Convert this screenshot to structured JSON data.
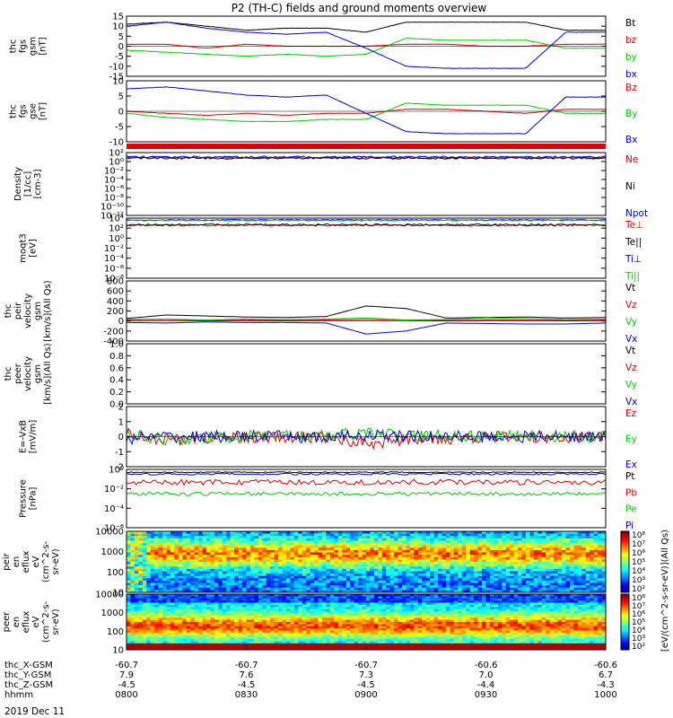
{
  "title": "P2 (TH-C) fields and ground moments overview",
  "date_label": "2019 Dec 11",
  "colors": {
    "black": "#000000",
    "red": "#dd0000",
    "green": "#00cc00",
    "blue": "#0000cc"
  },
  "panels": [
    {
      "id": "fgs-gsm",
      "ylabel": [
        "thc",
        "fgs",
        "gsm",
        "[nT]"
      ],
      "scale": "linear",
      "ylim": [
        -15,
        15
      ],
      "ticks": [
        "15",
        "10",
        "5",
        "0",
        "-5",
        "-10",
        "-15"
      ],
      "legend": [
        {
          "label": "Bt",
          "color": "black"
        },
        {
          "label": "bz",
          "color": "red"
        },
        {
          "label": "by",
          "color": "green"
        },
        {
          "label": "bx",
          "color": "blue"
        }
      ]
    },
    {
      "id": "fgs-gse",
      "ylabel": [
        "thc",
        "fgs",
        "gse",
        "[nT]"
      ],
      "scale": "linear",
      "ylim": [
        -15,
        15
      ],
      "ticks": [
        "10",
        "5",
        "0",
        "-5",
        "-10"
      ],
      "legend": [
        {
          "label": "Bz",
          "color": "red"
        },
        {
          "label": "By",
          "color": "green"
        },
        {
          "label": "Bx",
          "color": "blue"
        }
      ]
    },
    {
      "id": "density",
      "ylabel": [
        "Density",
        "[1/cc]",
        "[cm-3]"
      ],
      "scale": "log",
      "ticks": [
        "10²",
        "10⁰",
        "10⁻²",
        "10⁻⁴",
        "10⁻⁶",
        "10⁻⁸",
        "10⁻¹⁰",
        "10⁻¹²"
      ],
      "legend": [
        {
          "label": "Ne",
          "color": "red"
        },
        {
          "label": "Ni",
          "color": "black"
        },
        {
          "label": "Npot",
          "color": "blue"
        }
      ]
    },
    {
      "id": "temperature",
      "ylabel": [
        "moqt3",
        "[eV]"
      ],
      "scale": "log",
      "ticks": [
        "10⁴",
        "10²",
        "10⁰",
        "10⁻²",
        "10⁻⁴",
        "10⁻⁶",
        "10⁻⁸"
      ],
      "legend": [
        {
          "label": "Te⊥",
          "color": "red"
        },
        {
          "label": "Te||",
          "color": "black"
        },
        {
          "label": "Ti⊥",
          "color": "blue"
        },
        {
          "label": "Ti||",
          "color": "green"
        }
      ]
    },
    {
      "id": "peir-velocity",
      "ylabel": [
        "thc",
        "peir",
        "velocity",
        "gsm",
        "[km/s](All Qs)"
      ],
      "scale": "linear",
      "ylim": [
        -400,
        800
      ],
      "ticks": [
        "800",
        "600",
        "400",
        "200",
        "0",
        "-200",
        "-400"
      ],
      "legend": [
        {
          "label": "Vt",
          "color": "black"
        },
        {
          "label": "Vz",
          "color": "red"
        },
        {
          "label": "Vy",
          "color": "green"
        },
        {
          "label": "Vx",
          "color": "blue"
        }
      ]
    },
    {
      "id": "peer-velocity",
      "ylabel": [
        "thc",
        "peer",
        "velocity",
        "gsm",
        "[km/s](All Qs)"
      ],
      "scale": "linear",
      "ylim": [
        0,
        1
      ],
      "ticks": [
        "1.0",
        "0.8",
        "0.6",
        "0.4",
        "0.2",
        "0.0"
      ],
      "legend": [
        {
          "label": "Vt",
          "color": "black"
        },
        {
          "label": "Vz",
          "color": "red"
        },
        {
          "label": "Vy",
          "color": "green"
        },
        {
          "label": "Vx",
          "color": "blue"
        }
      ]
    },
    {
      "id": "efield",
      "ylabel": [
        "E=-VxB",
        "[mV/m]"
      ],
      "scale": "linear",
      "ylim": [
        -2,
        2
      ],
      "ticks": [
        "2",
        "1",
        "0",
        "-1",
        "-2"
      ],
      "legend": [
        {
          "label": "Ez",
          "color": "red"
        },
        {
          "label": "Ey",
          "color": "green"
        },
        {
          "label": "Ex",
          "color": "blue"
        }
      ]
    },
    {
      "id": "pressure",
      "ylabel": [
        "Pressure",
        "[nPa]"
      ],
      "scale": "log",
      "ticks": [
        "10⁰",
        "10⁻²",
        "10⁻⁴",
        "10⁻⁶"
      ],
      "legend": [
        {
          "label": "Pt",
          "color": "black"
        },
        {
          "label": "Pb",
          "color": "red"
        },
        {
          "label": "Pe",
          "color": "green"
        },
        {
          "label": "Pi",
          "color": "blue"
        }
      ]
    },
    {
      "id": "peir-spec",
      "ylabel": [
        "thc",
        "peir",
        "en",
        "eflux",
        "eV",
        "(cm^2-s-",
        "sr-eV)"
      ],
      "scale": "log",
      "ticks": [
        "10000",
        "1000",
        "100",
        "10"
      ]
    },
    {
      "id": "peer-spec",
      "ylabel": [
        "thc",
        "peer",
        "en",
        "eflux",
        "eV",
        "(cm^2-s-",
        "sr-eV)"
      ],
      "scale": "log",
      "ticks": [
        "10000",
        "1000",
        "100",
        "10"
      ]
    }
  ],
  "colorbar": {
    "label": "[eV/(cm^2-s-sr-eV)](All Qs)",
    "ticks_top": [
      "10⁸",
      "10⁷",
      "10⁶",
      "10⁵",
      "10⁴",
      "10³",
      "10²"
    ],
    "ticks_bottom": [
      "10⁸",
      "10⁷",
      "10⁶",
      "10⁵",
      "10⁴",
      "10³",
      "10²"
    ]
  },
  "xaxis": {
    "row_labels": [
      "thc_X-GSM",
      "thc_Y-GSM",
      "thc_Z-GSM",
      "hhmm"
    ],
    "ticks": [
      {
        "rows": [
          "-60.7",
          "7.9",
          "-4.5",
          "0800"
        ]
      },
      {
        "rows": [
          "-60.7",
          "7.6",
          "-4.5",
          "0830"
        ]
      },
      {
        "rows": [
          "-60.7",
          "7.3",
          "-4.5",
          "0900"
        ]
      },
      {
        "rows": [
          "-60.6",
          "7.0",
          "-4.4",
          "0930"
        ]
      },
      {
        "rows": [
          "-60.6",
          "6.7",
          "-4.3",
          "1000"
        ]
      }
    ]
  },
  "chart_data": {
    "type": "line",
    "x_unit": "hhmm",
    "x_range": [
      "0800",
      "1000"
    ],
    "series_samples": {
      "fgs-gsm": {
        "x": [
          "0800",
          "0810",
          "0820",
          "0830",
          "0840",
          "0850",
          "0900",
          "0910",
          "0920",
          "0930",
          "0940",
          "0950",
          "1000"
        ],
        "Bt": [
          11,
          12,
          10,
          8,
          9,
          9,
          7,
          12,
          12,
          12,
          12,
          8,
          8
        ],
        "bz": [
          1,
          1,
          -1,
          1,
          0,
          0,
          0,
          1,
          1,
          0,
          0,
          1,
          1
        ],
        "by": [
          -2,
          -3,
          -4,
          -5,
          -4,
          -5,
          -4,
          4,
          3,
          3,
          3,
          -1,
          -1
        ],
        "bx": [
          10,
          12,
          9,
          7,
          6,
          7,
          -1,
          -10,
          -11,
          -11,
          -11,
          7,
          7
        ]
      },
      "fgs-gse": {
        "x": [
          "0800",
          "0810",
          "0820",
          "0830",
          "0840",
          "0850",
          "0900",
          "0910",
          "0920",
          "0930",
          "0940",
          "0950",
          "1000"
        ],
        "Bz": [
          0,
          -1,
          -2,
          -1,
          -2,
          -1,
          -1,
          1,
          1,
          0,
          -1,
          1,
          1
        ],
        "By": [
          -1,
          -3,
          -4,
          -5,
          -5,
          -4,
          -4,
          4,
          3,
          3,
          3,
          -1,
          -1
        ],
        "Bx": [
          11,
          12,
          10,
          8,
          7,
          8,
          -1,
          -10,
          -11,
          -11,
          -11,
          7,
          7
        ]
      },
      "peir-velocity": {
        "x": [
          "0800",
          "0810",
          "0820",
          "0830",
          "0840",
          "0850",
          "0900",
          "0910",
          "0920",
          "0930",
          "0940",
          "0950",
          "1000"
        ],
        "Vt": [
          50,
          120,
          100,
          80,
          70,
          90,
          300,
          250,
          60,
          70,
          80,
          60,
          70
        ],
        "Vz": [
          20,
          30,
          10,
          20,
          10,
          20,
          30,
          20,
          10,
          20,
          20,
          10,
          20
        ],
        "Vy": [
          30,
          40,
          20,
          40,
          30,
          40,
          60,
          20,
          30,
          60,
          50,
          30,
          40
        ],
        "Vx": [
          -30,
          -40,
          -20,
          -30,
          -30,
          -40,
          -260,
          -200,
          -40,
          -50,
          -60,
          -60,
          -40
        ]
      },
      "efield": {
        "x": [
          "0800",
          "0810",
          "0820",
          "0830",
          "0840",
          "0850",
          "0900",
          "0910",
          "0920",
          "0930",
          "0940",
          "0950",
          "1000"
        ],
        "Ez": [
          0.2,
          -0.2,
          -0.1,
          0,
          -0.1,
          0,
          -0.5,
          -0.2,
          -0.1,
          0,
          -0.1,
          0,
          0
        ],
        "Ey": [
          0.1,
          -0.2,
          -0.1,
          0,
          0.1,
          0,
          0.3,
          0,
          0.1,
          0,
          0.1,
          0,
          0
        ],
        "Ex": [
          -0.1,
          0,
          0,
          0,
          0,
          -0.1,
          0.1,
          0,
          0,
          0,
          0,
          0,
          0
        ]
      }
    }
  }
}
